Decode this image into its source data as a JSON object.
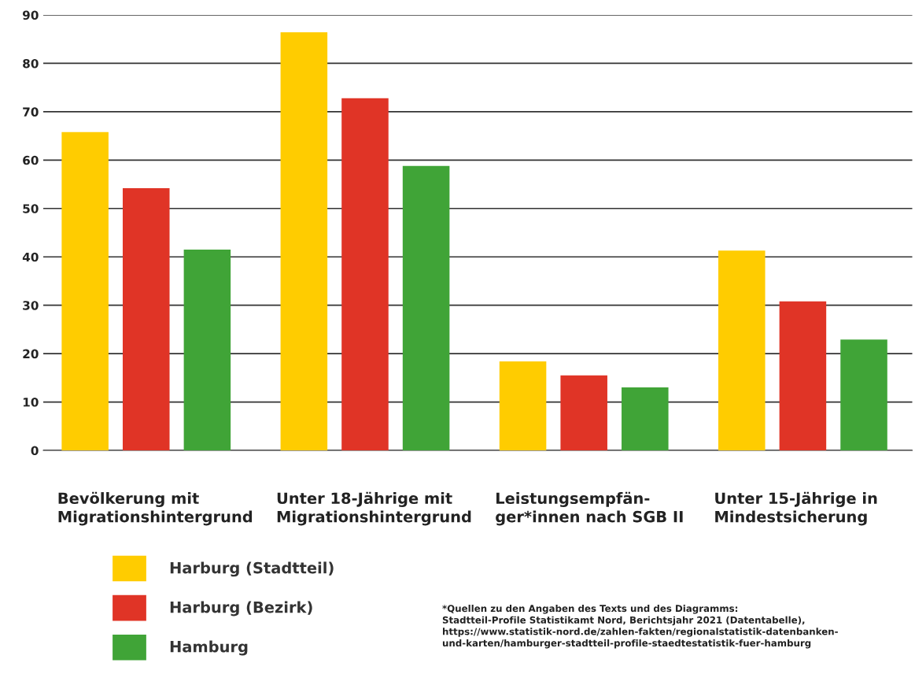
{
  "chart_data": {
    "type": "bar",
    "categories": [
      "Bevölkerung mit\nMigrationshintergrund",
      "Unter 18-Jährige mit\nMigrationshintergrund",
      "Leistungsempfän-\nger*innen nach SGB II",
      "Unter 15-Jährige in\nMindestsicherung"
    ],
    "series": [
      {
        "name": "Harburg (Stadtteil)",
        "color": "#ffcc00",
        "values": [
          65.8,
          86.4,
          18.4,
          41.3
        ]
      },
      {
        "name": "Harburg (Bezirk)",
        "color": "#e03426",
        "values": [
          54.2,
          72.8,
          15.5,
          30.8
        ]
      },
      {
        "name": "Hamburg",
        "color": "#40a437",
        "values": [
          41.5,
          58.8,
          13.0,
          22.9
        ]
      }
    ],
    "ylim": [
      0,
      90
    ],
    "yticks": [
      0,
      10,
      20,
      30,
      40,
      50,
      60,
      70,
      80,
      90
    ],
    "grid": "y",
    "legend": "bottom left",
    "annotations": [
      "*Quellen zu den Angaben des Texts und des Diagramms:\nStadtteil-Profile Statistikamt Nord, Berichtsjahr 2021 (Datentabelle),\nhttps://www.statistik-nord.de/zahlen-fakten/regionalstatistik-datenbanken-\nund-karten/hamburger-stadtteil-profile-staedtestatistik-fuer-hamburg"
    ]
  }
}
